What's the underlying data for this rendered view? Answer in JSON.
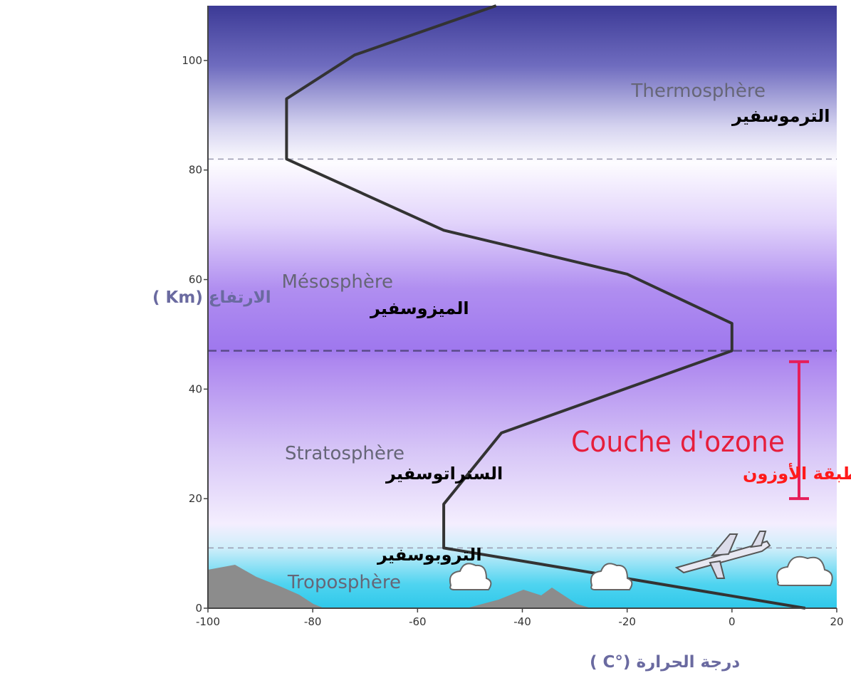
{
  "chart_data": {
    "type": "line",
    "title": "",
    "xlabel": "درجة الحرارة (°C )",
    "ylabel": "الارتفاع (Km )",
    "xlim": [
      -100,
      20
    ],
    "ylim": [
      0,
      110
    ],
    "xticks": [
      -100,
      -80,
      -60,
      -40,
      -20,
      0,
      20
    ],
    "yticks": [
      0,
      20,
      40,
      60,
      80,
      100
    ],
    "series": [
      {
        "x": [
          14,
          -55,
          -55,
          -44,
          0,
          0,
          -20,
          -55,
          -85,
          -85,
          -72,
          -45
        ],
        "y": [
          0,
          11,
          19,
          32,
          47,
          52,
          61,
          69,
          82,
          93,
          101,
          110
        ]
      }
    ],
    "boundaries": [
      11,
      47,
      82
    ],
    "layers": [
      {
        "fr": "Troposphère",
        "ar": "التروبوسفير"
      },
      {
        "fr": "Stratosphère",
        "ar": "الستراتوسفير"
      },
      {
        "fr": "Mésosphère",
        "ar": "الميزوسفير"
      },
      {
        "fr": "Thermosphère",
        "ar": "الترموسفير"
      }
    ],
    "ozone": {
      "fr": "Couche d'ozone",
      "ar": "طبقة الأوزون",
      "range": [
        20,
        45
      ],
      "color": "#e61e5a"
    },
    "grid": false,
    "legend": "none"
  }
}
